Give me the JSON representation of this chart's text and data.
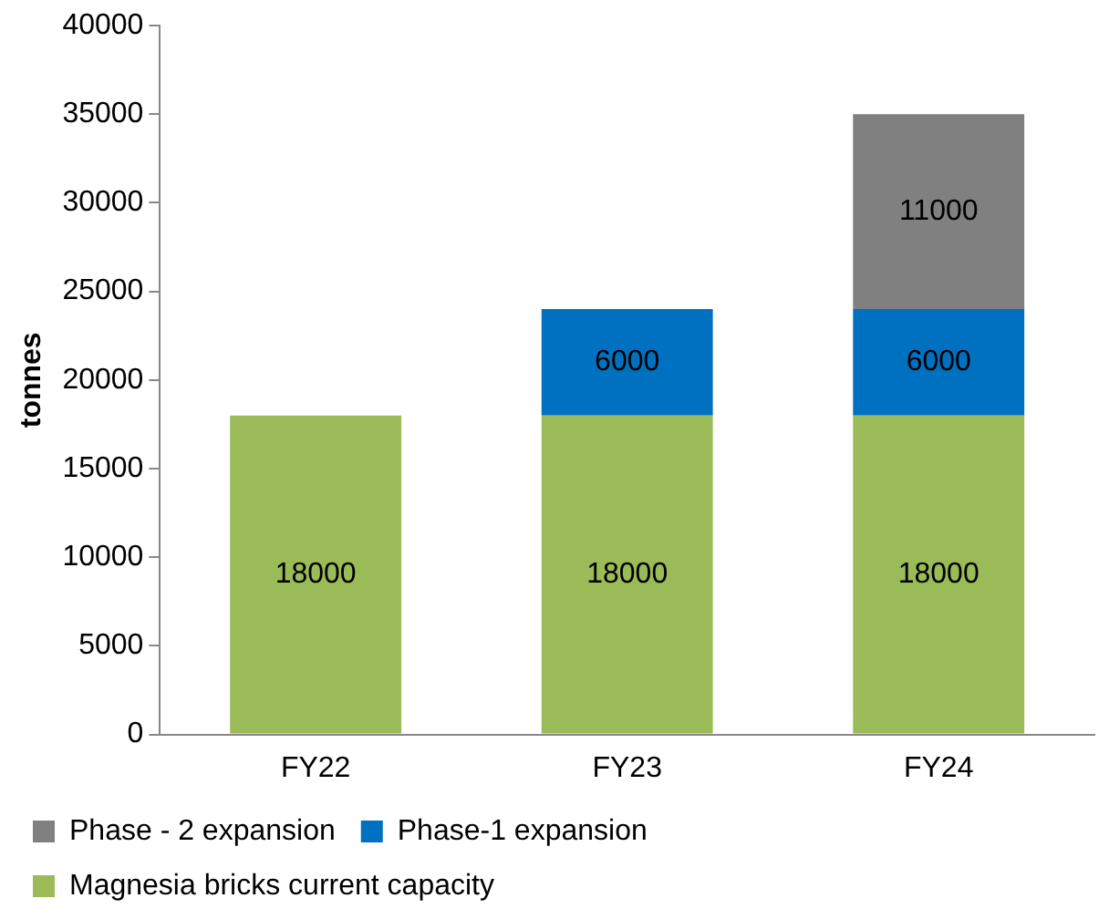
{
  "chart_data": {
    "type": "bar",
    "ylabel": "tonnes",
    "categories": [
      "FY22",
      "FY23",
      "FY24"
    ],
    "stacked": true,
    "series": [
      {
        "name": "Magnesia bricks current capacity",
        "color": "#9bbb59",
        "values": [
          18000,
          18000,
          18000
        ]
      },
      {
        "name": "Phase-1 expansion",
        "color": "#0070c0",
        "values": [
          null,
          6000,
          6000
        ]
      },
      {
        "name": "Phase - 2 expansion",
        "color": "#808080",
        "values": [
          null,
          null,
          11000
        ]
      }
    ],
    "ylim": [
      0,
      40000
    ],
    "yticks": [
      0,
      5000,
      10000,
      15000,
      20000,
      25000,
      30000,
      35000,
      40000
    ],
    "grid": false,
    "legend": "bottom",
    "data_labels": true
  }
}
